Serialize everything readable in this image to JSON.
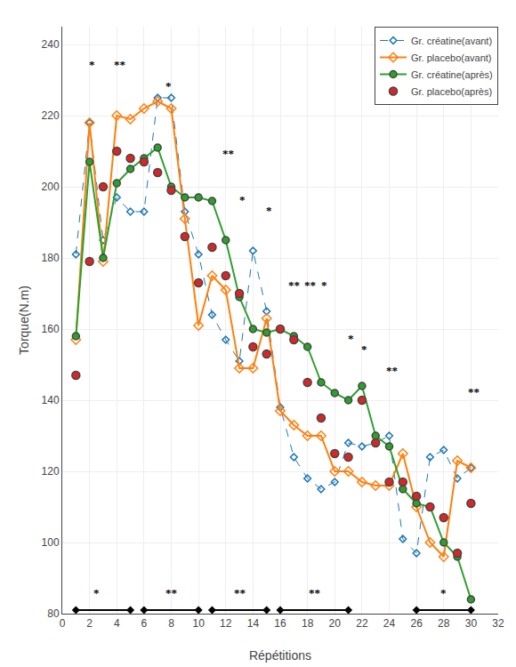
{
  "chart_data": {
    "type": "line",
    "xlabel": "Répétitions",
    "ylabel": "Torque(N.m)",
    "xlim": [
      0,
      32
    ],
    "ylim": [
      80,
      245
    ],
    "xticks": [
      0,
      2,
      4,
      6,
      8,
      10,
      12,
      14,
      16,
      18,
      20,
      22,
      24,
      26,
      28,
      30,
      32
    ],
    "yticks": [
      80,
      100,
      120,
      140,
      160,
      180,
      200,
      220,
      240
    ],
    "grid": true,
    "legend": "upper right",
    "background": "#ffffff",
    "x": [
      1,
      2,
      3,
      4,
      5,
      6,
      7,
      8,
      9,
      10,
      11,
      12,
      13,
      14,
      15,
      16,
      17,
      18,
      19,
      20,
      21,
      22,
      23,
      24,
      25,
      26,
      27,
      28,
      29,
      30
    ],
    "series": [
      {
        "name": "Gr. créatine(avant)",
        "type": "line",
        "marker": "diamond_open",
        "line_style": "dashed",
        "values": [
          181,
          218,
          185,
          197,
          193,
          193,
          225,
          225,
          193,
          181,
          164,
          157,
          151,
          182,
          165,
          138,
          124,
          118,
          115,
          117,
          128,
          127,
          128,
          130,
          101,
          97,
          124,
          126,
          118,
          121
        ]
      },
      {
        "name": "Gr. placebo(avant)",
        "type": "line",
        "marker": "diamond_open",
        "line_style": "solid",
        "values": [
          157,
          218,
          179,
          220,
          219,
          222,
          224,
          222,
          191,
          161,
          175,
          171,
          149,
          149,
          163,
          137,
          133,
          130,
          130,
          120,
          120,
          117,
          116,
          116,
          125,
          110,
          100,
          96,
          123,
          121
        ]
      },
      {
        "name": "Gr. créatine(après)",
        "type": "line",
        "marker": "circle",
        "line_style": "solid",
        "values": [
          158,
          207,
          180,
          201,
          205,
          208,
          211,
          200,
          197,
          197,
          196,
          185,
          169,
          160,
          159,
          160,
          158,
          155,
          145,
          142,
          140,
          144,
          130,
          127,
          115,
          111,
          110,
          100,
          96,
          84
        ]
      },
      {
        "name": "Gr. placebo(après)",
        "type": "scatter",
        "marker": "circle",
        "line_style": "none",
        "values": [
          147,
          179,
          200,
          210,
          208,
          207,
          204,
          199,
          186,
          173,
          183,
          175,
          170,
          155,
          153,
          160,
          157,
          145,
          135,
          125,
          124,
          140,
          128,
          117,
          117,
          113,
          110,
          107,
          97,
          111
        ]
      }
    ],
    "annotations": [
      {
        "x": 2.2,
        "y": 232,
        "text": "*"
      },
      {
        "x": 4.2,
        "y": 232,
        "text": "**"
      },
      {
        "x": 7.8,
        "y": 226,
        "text": "*"
      },
      {
        "x": 12.2,
        "y": 207,
        "text": "**"
      },
      {
        "x": 13.2,
        "y": 194,
        "text": "*"
      },
      {
        "x": 15.2,
        "y": 191,
        "text": "*"
      },
      {
        "x": 17.0,
        "y": 170,
        "text": "**"
      },
      {
        "x": 18.2,
        "y": 170,
        "text": "**"
      },
      {
        "x": 19.2,
        "y": 170,
        "text": "*"
      },
      {
        "x": 21.2,
        "y": 155,
        "text": "*"
      },
      {
        "x": 22.2,
        "y": 152,
        "text": "*"
      },
      {
        "x": 24.2,
        "y": 146,
        "text": "**"
      },
      {
        "x": 30.2,
        "y": 140,
        "text": "**"
      }
    ],
    "brackets": [
      {
        "x1": 1,
        "x2": 5,
        "y": 81,
        "star": "*",
        "sx": 2.5,
        "sy": 83.5
      },
      {
        "x1": 6,
        "x2": 10,
        "y": 81,
        "star": "**",
        "sx": 8,
        "sy": 83.5
      },
      {
        "x1": 11,
        "x2": 15,
        "y": 81,
        "star": "**",
        "sx": 13,
        "sy": 83.5
      },
      {
        "x1": 16,
        "x2": 21,
        "y": 81,
        "star": "**",
        "sx": 18.5,
        "sy": 83.5
      },
      {
        "x1": 26,
        "x2": 30,
        "y": 81,
        "star": "*",
        "sx": 28,
        "sy": 83.5
      }
    ]
  }
}
